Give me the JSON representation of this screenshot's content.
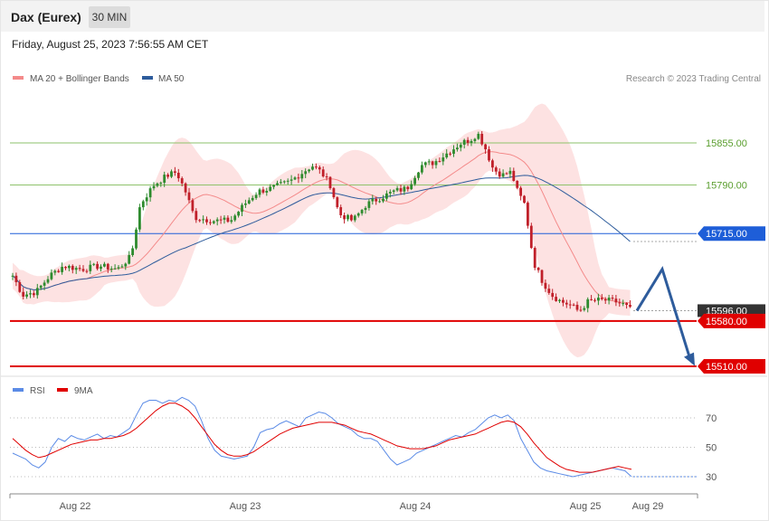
{
  "header": {
    "instrument": "Dax (Eurex)",
    "timeframe_label": "30 MIN",
    "timestamp": "Friday, August 25, 2023 7:56:55 AM CET"
  },
  "legend": {
    "ma20_label": "MA 20 + Bollinger Bands",
    "ma20_color": "#f48a8a",
    "ma50_label": "MA 50",
    "ma50_color": "#2e5c9c",
    "copyright": "Research © 2023 Trading Central"
  },
  "rsi_legend": {
    "rsi_label": "RSI",
    "rsi_color": "#5b8be6",
    "ma_label": "9MA",
    "ma_color": "#e00000"
  },
  "chart_data": [
    {
      "type": "candlestick",
      "ylim": [
        15495,
        15890
      ],
      "x_tick_labels": [
        "Aug 22",
        "Aug 23",
        "Aug 24",
        "Aug 25",
        "Aug 29"
      ],
      "levels": [
        {
          "value": 15855,
          "label": "15855.00",
          "color": "#8ec26b",
          "style": "thin"
        },
        {
          "value": 15790,
          "label": "15790.00",
          "color": "#8ec26b",
          "style": "thin"
        },
        {
          "value": 15715,
          "label": "15715.00",
          "color": "#1e5ed8",
          "style": "tag"
        },
        {
          "value": 15596,
          "label": "15596.00",
          "color": "#333333",
          "style": "last"
        },
        {
          "value": 15580,
          "label": "15580.00",
          "color": "#e00000",
          "style": "tag-bold"
        },
        {
          "value": 15510,
          "label": "15510.00",
          "color": "#e00000",
          "style": "tag-bold"
        }
      ],
      "projection": [
        15596,
        15660,
        15512
      ],
      "colors": {
        "up": "#2e8b2e",
        "down": "#c0202a",
        "band": "#fde2e2",
        "arrow": "#2e5c9c"
      }
    },
    {
      "type": "line",
      "ylim": [
        15,
        90
      ],
      "y_ticks": [
        70,
        50,
        30
      ],
      "series": [
        {
          "name": "RSI",
          "color": "#5b8be6",
          "values": [
            46,
            44,
            42,
            38,
            36,
            40,
            50,
            56,
            54,
            58,
            56,
            55,
            57,
            59,
            56,
            58,
            57,
            60,
            63,
            72,
            80,
            82,
            82,
            80,
            82,
            81,
            84,
            82,
            78,
            68,
            56,
            48,
            44,
            43,
            42,
            43,
            44,
            50,
            60,
            62,
            63,
            66,
            68,
            66,
            64,
            70,
            72,
            74,
            73,
            70,
            66,
            64,
            62,
            58,
            56,
            56,
            54,
            48,
            42,
            38,
            40,
            42,
            46,
            48,
            50,
            52,
            54,
            56,
            58,
            57,
            60,
            62,
            66,
            70,
            72,
            70,
            72,
            68,
            56,
            48,
            40,
            36,
            34,
            33,
            32,
            31,
            30,
            31,
            32,
            33,
            34,
            35,
            36,
            35,
            34,
            30
          ]
        },
        {
          "name": "9MA",
          "color": "#e00000",
          "values": [
            56,
            52,
            48,
            45,
            43,
            44,
            46,
            48,
            50,
            52,
            53,
            54,
            55,
            55,
            56,
            56,
            57,
            58,
            60,
            63,
            67,
            71,
            75,
            78,
            80,
            80,
            78,
            75,
            70,
            64,
            58,
            52,
            48,
            45,
            44,
            44,
            45,
            47,
            50,
            53,
            56,
            59,
            61,
            63,
            64,
            65,
            66,
            67,
            67,
            67,
            66,
            65,
            63,
            61,
            60,
            59,
            57,
            55,
            53,
            51,
            50,
            49,
            49,
            49,
            50,
            51,
            53,
            55,
            56,
            57,
            58,
            59,
            61,
            63,
            65,
            67,
            68,
            67,
            64,
            59,
            53,
            48,
            43,
            40,
            37,
            35,
            34,
            33,
            33,
            33,
            34,
            35,
            36,
            37,
            36,
            35
          ]
        }
      ]
    }
  ]
}
